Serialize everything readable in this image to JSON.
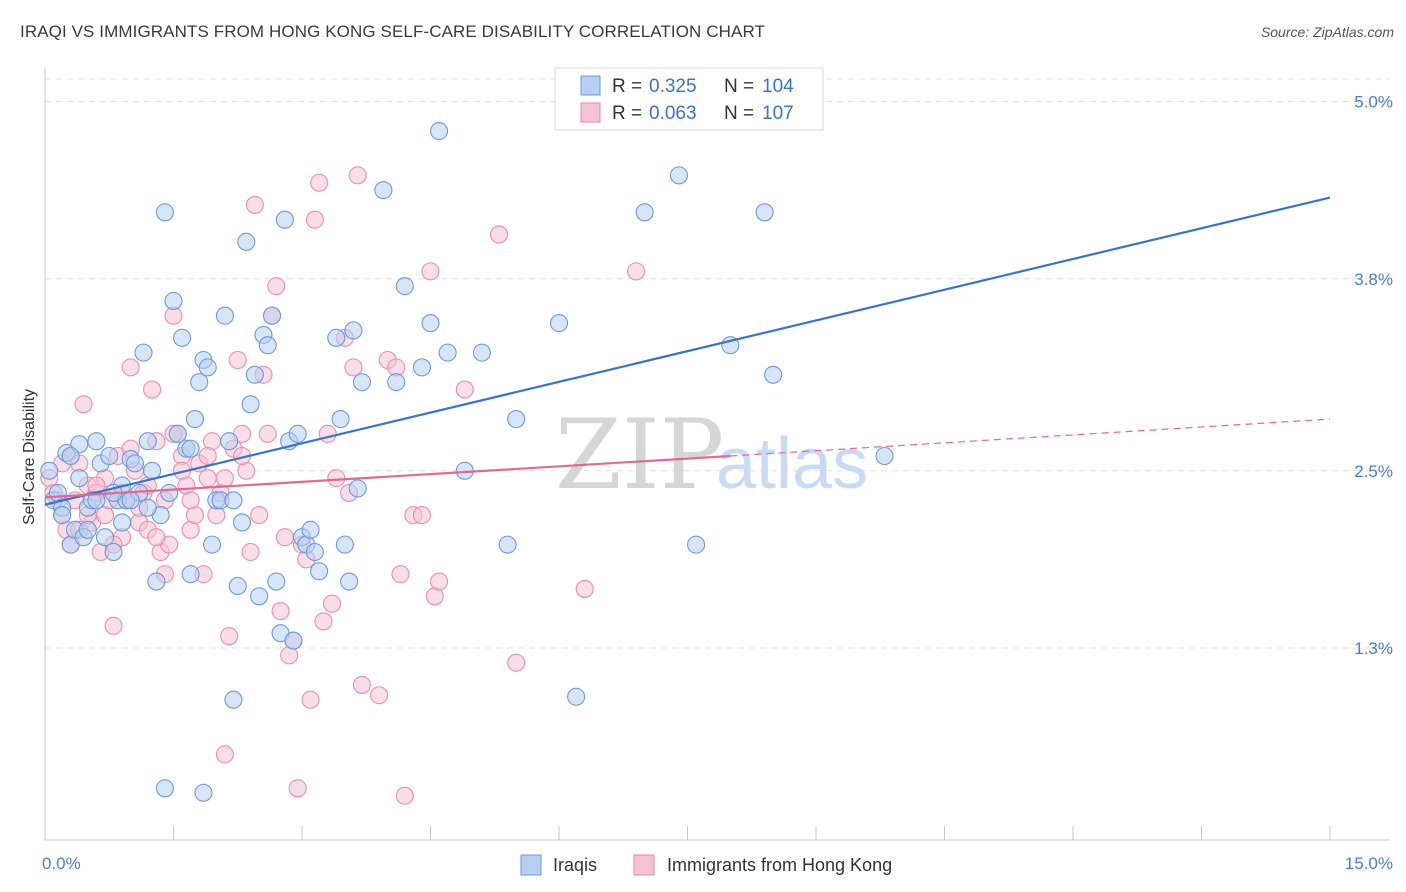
{
  "title": "IRAQI VS IMMIGRANTS FROM HONG KONG SELF-CARE DISABILITY CORRELATION CHART",
  "source": "Source: ZipAtlas.com",
  "watermark": {
    "zip": "ZIP",
    "atlas": "atlas"
  },
  "colors": {
    "blue": "#3a74c9",
    "blue_fill": "#b7d0f2",
    "pink": "#e06a93",
    "pink_fill": "#f6c3d4",
    "grid": "#e0e0e0"
  },
  "legend": {
    "r_label": "R =",
    "n_label": "N =",
    "rows": [
      {
        "r": "0.325",
        "n": "104"
      },
      {
        "r": "0.063",
        "n": "107"
      }
    ]
  },
  "bottom_legend": [
    "Iraqis",
    "Immigrants from Hong Kong"
  ],
  "chart_data": {
    "type": "scatter",
    "title": "IRAQI VS IMMIGRANTS FROM HONG KONG SELF-CARE DISABILITY CORRELATION CHART",
    "xlabel": "",
    "ylabel": "Self-Care Disability",
    "xlim": [
      0.0,
      15.0
    ],
    "ylim": [
      0.0,
      5.2
    ],
    "x_tick_labels": [
      "0.0%",
      "15.0%"
    ],
    "y_ticks": [
      1.3,
      2.5,
      3.8,
      5.0
    ],
    "y_tick_labels": [
      "1.3%",
      "2.5%",
      "3.8%",
      "5.0%"
    ],
    "grid": true,
    "legend_position": "top-center",
    "series": [
      {
        "name": "Iraqis",
        "trend": {
          "x0": 0.0,
          "y0": 2.27,
          "x1": 15.0,
          "y1": 4.35
        },
        "points": [
          [
            0.05,
            2.5
          ],
          [
            0.1,
            2.3
          ],
          [
            0.15,
            2.35
          ],
          [
            0.2,
            2.25
          ],
          [
            0.25,
            2.62
          ],
          [
            0.3,
            2.0
          ],
          [
            0.35,
            2.1
          ],
          [
            0.4,
            2.68
          ],
          [
            0.45,
            2.05
          ],
          [
            0.5,
            2.25
          ],
          [
            0.55,
            2.3
          ],
          [
            0.6,
            2.7
          ],
          [
            0.65,
            2.55
          ],
          [
            0.7,
            2.05
          ],
          [
            0.75,
            2.6
          ],
          [
            0.8,
            1.95
          ],
          [
            0.85,
            2.3
          ],
          [
            0.9,
            2.4
          ],
          [
            0.95,
            2.3
          ],
          [
            1.0,
            2.58
          ],
          [
            1.05,
            2.55
          ],
          [
            1.1,
            2.35
          ],
          [
            1.15,
            3.3
          ],
          [
            1.2,
            2.7
          ],
          [
            1.25,
            2.5
          ],
          [
            1.3,
            1.75
          ],
          [
            1.35,
            2.2
          ],
          [
            1.4,
            4.25
          ],
          [
            1.45,
            2.35
          ],
          [
            1.5,
            3.65
          ],
          [
            1.55,
            2.75
          ],
          [
            1.6,
            3.4
          ],
          [
            1.65,
            2.65
          ],
          [
            1.7,
            1.8
          ],
          [
            1.75,
            2.85
          ],
          [
            1.8,
            3.1
          ],
          [
            1.85,
            3.25
          ],
          [
            1.9,
            3.2
          ],
          [
            1.95,
            2.0
          ],
          [
            2.0,
            2.3
          ],
          [
            2.05,
            2.3
          ],
          [
            2.1,
            3.55
          ],
          [
            2.15,
            2.7
          ],
          [
            2.2,
            2.3
          ],
          [
            2.25,
            1.72
          ],
          [
            2.3,
            2.15
          ],
          [
            2.35,
            4.05
          ],
          [
            2.4,
            2.95
          ],
          [
            2.45,
            3.15
          ],
          [
            2.5,
            1.65
          ],
          [
            2.55,
            3.42
          ],
          [
            2.6,
            3.35
          ],
          [
            2.65,
            3.55
          ],
          [
            2.7,
            1.75
          ],
          [
            2.75,
            1.4
          ],
          [
            2.8,
            4.2
          ],
          [
            2.85,
            2.7
          ],
          [
            2.9,
            1.35
          ],
          [
            2.95,
            2.75
          ],
          [
            3.0,
            2.05
          ],
          [
            3.05,
            2.0
          ],
          [
            3.1,
            2.1
          ],
          [
            3.15,
            1.95
          ],
          [
            3.2,
            1.82
          ],
          [
            3.4,
            3.4
          ],
          [
            3.45,
            2.85
          ],
          [
            3.5,
            2.0
          ],
          [
            3.55,
            1.75
          ],
          [
            3.6,
            3.45
          ],
          [
            3.65,
            2.38
          ],
          [
            3.7,
            3.1
          ],
          [
            3.95,
            4.4
          ],
          [
            4.1,
            3.1
          ],
          [
            4.2,
            3.75
          ],
          [
            4.4,
            3.2
          ],
          [
            4.5,
            3.5
          ],
          [
            4.6,
            4.8
          ],
          [
            4.7,
            3.3
          ],
          [
            4.9,
            2.5
          ],
          [
            5.1,
            3.3
          ],
          [
            5.4,
            2.0
          ],
          [
            5.5,
            2.85
          ],
          [
            6.0,
            3.5
          ],
          [
            6.2,
            0.97
          ],
          [
            7.0,
            4.25
          ],
          [
            7.4,
            4.5
          ],
          [
            7.6,
            2.0
          ],
          [
            8.0,
            3.35
          ],
          [
            8.4,
            4.25
          ],
          [
            8.5,
            3.15
          ],
          [
            9.8,
            2.6
          ],
          [
            2.2,
            0.95
          ],
          [
            1.4,
            0.35
          ],
          [
            1.85,
            0.32
          ],
          [
            0.9,
            2.15
          ],
          [
            1.0,
            2.3
          ],
          [
            0.6,
            2.3
          ],
          [
            1.7,
            2.65
          ],
          [
            0.3,
            2.6
          ],
          [
            0.4,
            2.45
          ],
          [
            0.8,
            2.35
          ],
          [
            1.2,
            2.25
          ],
          [
            0.5,
            2.1
          ],
          [
            0.2,
            2.2
          ]
        ]
      },
      {
        "name": "Immigrants from Hong Kong",
        "trend_solid": {
          "x0": 0.0,
          "y0": 2.32,
          "x1": 8.0,
          "y1": 2.6
        },
        "trend_dashed": {
          "x0": 8.0,
          "y0": 2.6,
          "x1": 15.0,
          "y1": 2.85
        },
        "points": [
          [
            0.05,
            2.45
          ],
          [
            0.1,
            2.35
          ],
          [
            0.15,
            2.3
          ],
          [
            0.2,
            2.2
          ],
          [
            0.25,
            2.1
          ],
          [
            0.3,
            2.6
          ],
          [
            0.35,
            2.3
          ],
          [
            0.4,
            2.55
          ],
          [
            0.45,
            2.95
          ],
          [
            0.5,
            2.4
          ],
          [
            0.55,
            2.15
          ],
          [
            0.6,
            2.35
          ],
          [
            0.65,
            1.95
          ],
          [
            0.7,
            2.2
          ],
          [
            0.75,
            2.3
          ],
          [
            0.8,
            1.45
          ],
          [
            0.85,
            2.6
          ],
          [
            0.9,
            2.05
          ],
          [
            0.95,
            2.3
          ],
          [
            1.0,
            3.2
          ],
          [
            1.05,
            2.5
          ],
          [
            1.1,
            2.15
          ],
          [
            1.15,
            2.35
          ],
          [
            1.2,
            2.1
          ],
          [
            1.25,
            3.05
          ],
          [
            1.3,
            2.7
          ],
          [
            1.35,
            1.95
          ],
          [
            1.4,
            2.3
          ],
          [
            1.45,
            2.0
          ],
          [
            1.5,
            3.55
          ],
          [
            1.55,
            2.75
          ],
          [
            1.6,
            2.6
          ],
          [
            1.65,
            2.4
          ],
          [
            1.7,
            2.1
          ],
          [
            1.75,
            2.2
          ],
          [
            1.8,
            2.55
          ],
          [
            1.85,
            1.8
          ],
          [
            1.9,
            2.45
          ],
          [
            1.95,
            2.7
          ],
          [
            2.0,
            2.2
          ],
          [
            2.05,
            2.35
          ],
          [
            2.1,
            0.58
          ],
          [
            2.15,
            1.38
          ],
          [
            2.2,
            2.65
          ],
          [
            2.25,
            3.25
          ],
          [
            2.3,
            2.75
          ],
          [
            2.35,
            2.5
          ],
          [
            2.4,
            1.95
          ],
          [
            2.45,
            4.3
          ],
          [
            2.5,
            2.2
          ],
          [
            2.55,
            3.15
          ],
          [
            2.6,
            2.75
          ],
          [
            2.65,
            3.55
          ],
          [
            2.7,
            3.75
          ],
          [
            2.75,
            1.55
          ],
          [
            2.8,
            2.05
          ],
          [
            2.85,
            1.25
          ],
          [
            2.9,
            1.35
          ],
          [
            2.95,
            0.35
          ],
          [
            3.0,
            2.0
          ],
          [
            3.05,
            1.9
          ],
          [
            3.1,
            0.95
          ],
          [
            3.15,
            4.2
          ],
          [
            3.2,
            4.45
          ],
          [
            3.25,
            1.48
          ],
          [
            3.3,
            2.75
          ],
          [
            3.35,
            1.6
          ],
          [
            3.4,
            2.45
          ],
          [
            3.5,
            3.4
          ],
          [
            3.55,
            2.35
          ],
          [
            3.6,
            3.2
          ],
          [
            3.65,
            4.5
          ],
          [
            3.7,
            1.05
          ],
          [
            3.9,
            0.98
          ],
          [
            4.0,
            3.25
          ],
          [
            4.1,
            3.2
          ],
          [
            4.15,
            1.8
          ],
          [
            4.2,
            0.3
          ],
          [
            4.3,
            2.2
          ],
          [
            4.4,
            2.2
          ],
          [
            4.5,
            3.85
          ],
          [
            4.55,
            1.65
          ],
          [
            4.6,
            1.75
          ],
          [
            4.9,
            3.05
          ],
          [
            5.3,
            4.1
          ],
          [
            5.5,
            1.2
          ],
          [
            6.3,
            1.7
          ],
          [
            6.9,
            3.85
          ],
          [
            0.3,
            2.0
          ],
          [
            0.5,
            2.2
          ],
          [
            0.7,
            2.45
          ],
          [
            0.9,
            2.35
          ],
          [
            1.1,
            2.25
          ],
          [
            1.3,
            2.05
          ],
          [
            1.5,
            2.75
          ],
          [
            1.7,
            2.3
          ],
          [
            1.9,
            2.6
          ],
          [
            2.1,
            2.45
          ],
          [
            2.3,
            2.6
          ],
          [
            0.2,
            2.55
          ],
          [
            0.4,
            2.1
          ],
          [
            0.6,
            2.4
          ],
          [
            0.8,
            2.0
          ],
          [
            1.0,
            2.65
          ],
          [
            1.2,
            2.4
          ],
          [
            1.4,
            1.8
          ],
          [
            1.6,
            2.5
          ]
        ]
      }
    ]
  }
}
